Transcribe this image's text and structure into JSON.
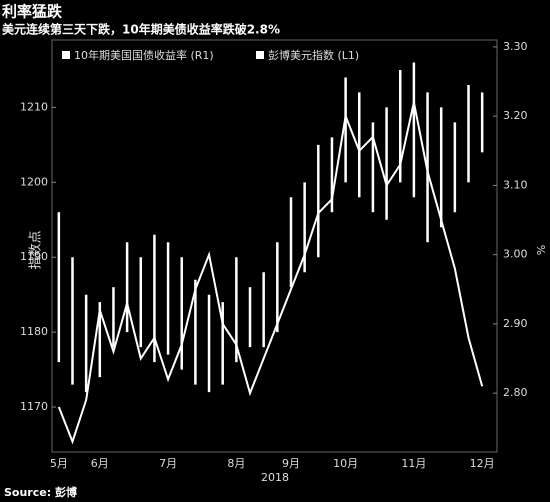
{
  "chart_data": {
    "type": "ohlc-line",
    "title": "利率猛跌",
    "subtitle": "美元连续第三天下跌，10年期美债收益率跌破2.8%",
    "source": "Source: 彭博",
    "y_label": "指数点",
    "y2_label": "%",
    "x_label": "2018",
    "categories": [
      "5月",
      null,
      null,
      "6月",
      null,
      null,
      null,
      null,
      "7月",
      null,
      null,
      null,
      null,
      "8月",
      null,
      null,
      null,
      "9月",
      null,
      null,
      null,
      "10月",
      null,
      null,
      null,
      null,
      "11月",
      null,
      null,
      null,
      null,
      "12月"
    ],
    "series": [
      {
        "name": "彭博美元指数 (L1)",
        "color": "#ffffff",
        "high": [
          1196,
          1190,
          1185,
          1184,
          1186,
          1192,
          1190,
          1193,
          1192,
          1190,
          1187,
          1185,
          1184,
          1190,
          1186,
          1188,
          1192,
          1198,
          1200,
          1205,
          1206,
          1214,
          1212,
          1208,
          1210,
          1215,
          1216,
          1212,
          1210,
          1208,
          1213,
          1212
        ],
        "low": [
          1176,
          1173,
          1172,
          1174,
          1178,
          1180,
          1178,
          1176,
          1177,
          1175,
          1173,
          1172,
          1173,
          1176,
          1178,
          1178,
          1180,
          1186,
          1188,
          1190,
          1196,
          1200,
          1198,
          1196,
          1195,
          1200,
          1198,
          1192,
          1194,
          1196,
          1200,
          1204
        ]
      },
      {
        "name": "10年期美国国债收益率 (R1)",
        "color": "#ffffff",
        "axis": "y2",
        "values": [
          2.78,
          2.73,
          2.79,
          2.92,
          2.86,
          2.93,
          2.85,
          2.88,
          2.82,
          2.87,
          2.95,
          3.0,
          2.9,
          2.87,
          2.8,
          2.85,
          2.9,
          2.95,
          3.0,
          3.06,
          3.08,
          3.2,
          3.15,
          3.17,
          3.1,
          3.13,
          3.22,
          3.12,
          3.05,
          2.98,
          2.88,
          2.81
        ]
      }
    ],
    "ylim": [
      1164,
      1219
    ],
    "yticks": [
      1170,
      1180,
      1190,
      1200,
      1210
    ],
    "y2lim": [
      2.715,
      3.31
    ],
    "y2ticks": [
      {
        "value": 2.8,
        "label": "2.80"
      },
      {
        "value": 2.9,
        "label": "2.90"
      },
      {
        "value": 3.0,
        "label": "3.00"
      },
      {
        "value": 3.1,
        "label": "3.10"
      },
      {
        "value": 3.2,
        "label": "3.20"
      },
      {
        "value": 3.3,
        "label": "3.30"
      }
    ],
    "grid": false
  }
}
